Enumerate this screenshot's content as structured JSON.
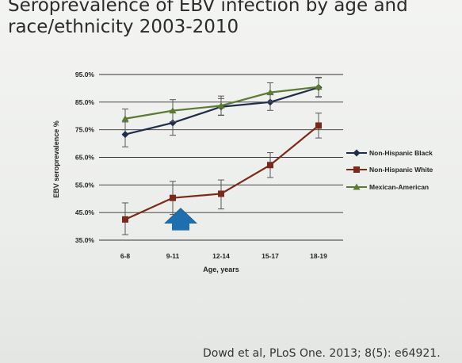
{
  "slide": {
    "title_line1": "Seroprevalence of EBV infection by age and",
    "title_line2": "race/ethnicity 2003-2010",
    "citation": "Dowd et al, PLoS One. 2013; 8(5): e64921."
  },
  "colors": {
    "non_hispanic_black": "#1f2d4a",
    "non_hispanic_white": "#7a2a1a",
    "mexican_american": "#5c7a36",
    "arrow": "#1f6fae",
    "gridline": "#333333",
    "error_bar": "#555555"
  },
  "annotation": {
    "icon": "up-arrow-icon",
    "x_from": 9.5,
    "x_to": 11.5,
    "y": 44
  },
  "chart_data": {
    "type": "line",
    "title": "",
    "xlabel": "Age, years",
    "ylabel": "EBV seroprevalence %",
    "categories": [
      "6-8",
      "9-11",
      "12-14",
      "15-17",
      "18-19"
    ],
    "ylim": [
      35,
      95
    ],
    "yticks": [
      "35.0%",
      "45.0%",
      "55.0%",
      "65.0%",
      "75.0%",
      "85.0%",
      "95.0%"
    ],
    "ytick_values": [
      35,
      45,
      55,
      65,
      75,
      85,
      95
    ],
    "grid": true,
    "legend": "right",
    "series": [
      {
        "name": "Non-Hispanic Black",
        "marker": "diamond",
        "values": [
          73.3,
          77.5,
          83.3,
          85.0,
          90.3
        ],
        "err_low": [
          4.5,
          4.5,
          3.0,
          3.0,
          3.5
        ],
        "err_high": [
          4.5,
          4.5,
          3.0,
          3.0,
          3.5
        ]
      },
      {
        "name": "Non-Hispanic White",
        "marker": "square",
        "values": [
          42.5,
          50.3,
          51.8,
          62.2,
          76.5
        ],
        "err_low": [
          5.5,
          6.0,
          5.5,
          4.5,
          4.5
        ],
        "err_high": [
          6.0,
          6.0,
          5.0,
          4.5,
          4.5
        ]
      },
      {
        "name": "Mexican-American",
        "marker": "triangle",
        "values": [
          79.0,
          81.9,
          83.7,
          88.5,
          90.5
        ],
        "err_low": [
          4.0,
          4.0,
          3.5,
          3.5,
          3.5
        ],
        "err_high": [
          3.5,
          4.0,
          3.5,
          3.5,
          3.5
        ]
      }
    ]
  }
}
